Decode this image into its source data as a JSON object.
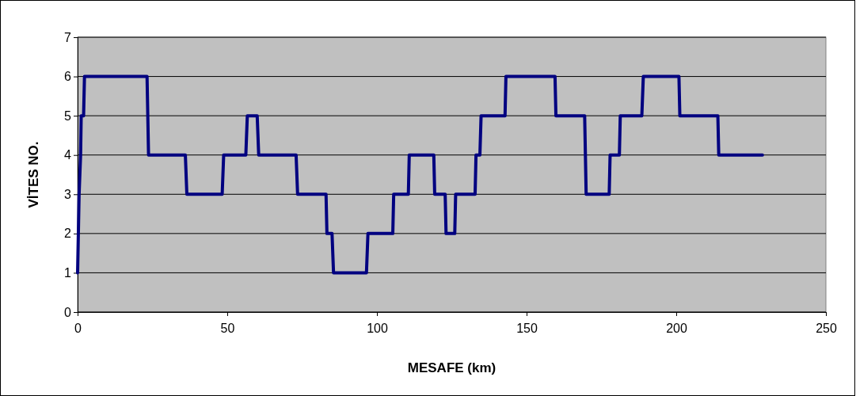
{
  "chart_data": {
    "type": "line",
    "xlabel": "MESAFE (km)",
    "ylabel": "VİTES NO.",
    "x": [
      0,
      0.5,
      1,
      1.2,
      2,
      2.3,
      23.2,
      23.7,
      36,
      36.5,
      48.3,
      48.8,
      56.2,
      56.7,
      60,
      60.5,
      73,
      73.5,
      83,
      83.3,
      85,
      85.5,
      96.5,
      97,
      105.3,
      105.6,
      110.5,
      110.8,
      119,
      119.3,
      122.8,
      123.1,
      126,
      126.3,
      132.8,
      133.1,
      134.4,
      134.8,
      142.8,
      143.1,
      159.5,
      159.8,
      169.4,
      169.9,
      177.6,
      177.9,
      181,
      181.3,
      188.5,
      189,
      200.9,
      201.2,
      213.9,
      214.2,
      228.8
    ],
    "series": [
      {
        "color": "#000080",
        "values": [
          1,
          3,
          4,
          5,
          5,
          6,
          6,
          4,
          4,
          3,
          3,
          4,
          4,
          5,
          5,
          4,
          4,
          3,
          3,
          2,
          2,
          1,
          1,
          2,
          2,
          3,
          3,
          4,
          4,
          3,
          3,
          2,
          2,
          3,
          3,
          4,
          4,
          5,
          5,
          6,
          6,
          5,
          5,
          3,
          3,
          4,
          4,
          5,
          5,
          6,
          6,
          5,
          5,
          4,
          4
        ]
      }
    ],
    "xlim": [
      0,
      250
    ],
    "xticks": [
      0,
      50,
      100,
      150,
      200,
      250
    ],
    "ylim": [
      0,
      7
    ],
    "yticks": [
      0,
      1,
      2,
      3,
      4,
      5,
      6,
      7
    ],
    "grid": "y",
    "marker": "none",
    "line_style": "solid"
  }
}
